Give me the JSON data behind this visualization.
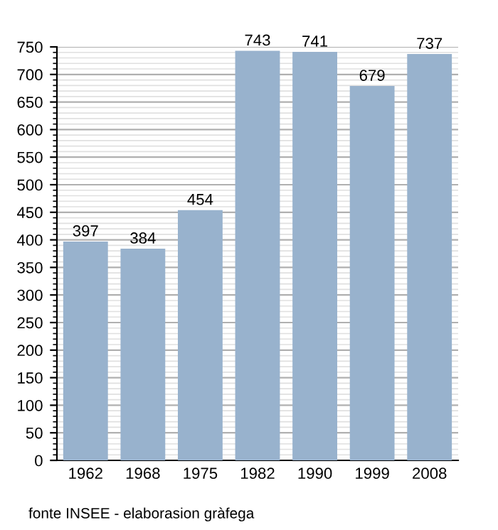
{
  "chart_data": {
    "type": "bar",
    "categories": [
      "1962",
      "1968",
      "1975",
      "1982",
      "1990",
      "1999",
      "2008"
    ],
    "values": [
      397,
      384,
      454,
      743,
      741,
      679,
      737
    ],
    "color": "#98b2cd",
    "data_labels": true,
    "ylim": [
      0,
      750
    ],
    "yticks": [
      0,
      50,
      100,
      150,
      200,
      250,
      300,
      350,
      400,
      450,
      500,
      550,
      600,
      650,
      700,
      750
    ],
    "grid": "y",
    "annotations": [
      "fonte INSEE - elaborasion gràfega"
    ]
  }
}
